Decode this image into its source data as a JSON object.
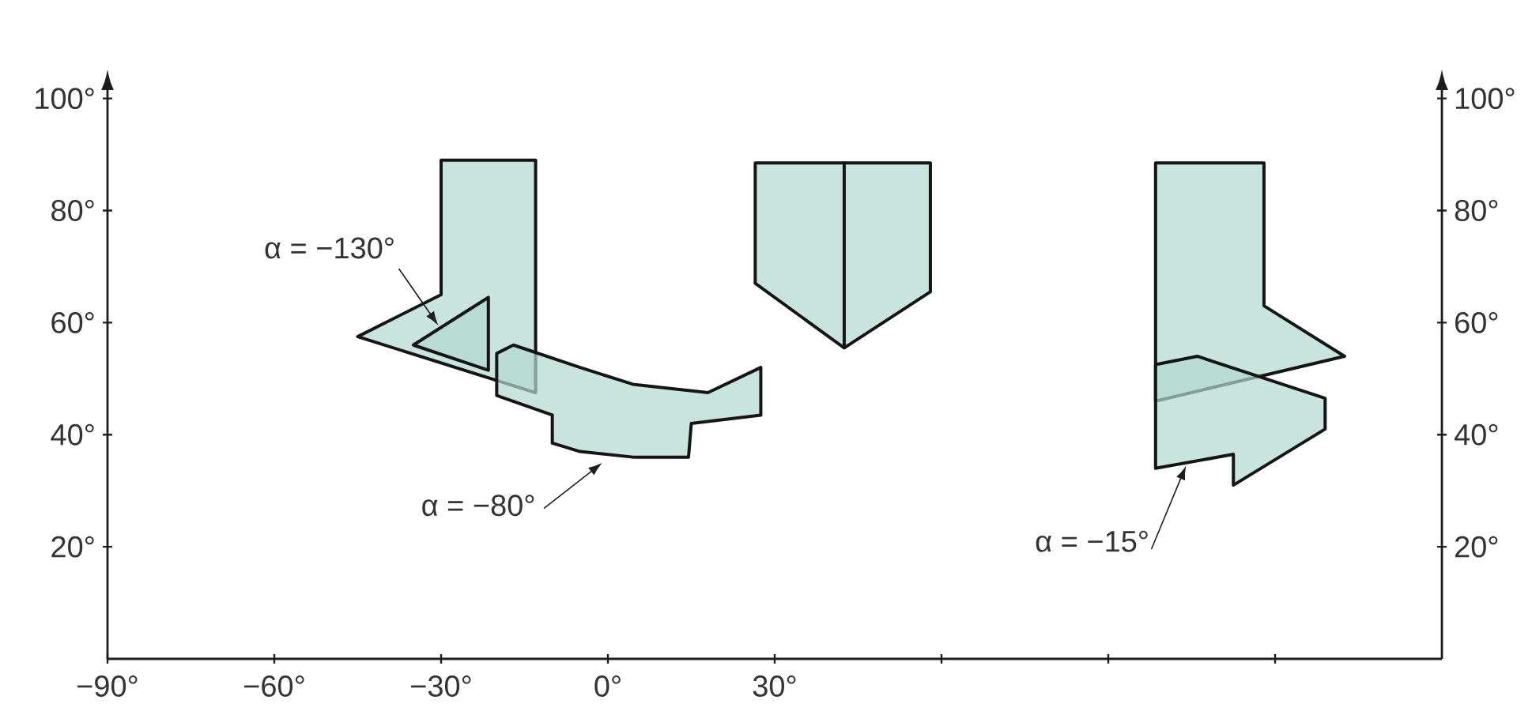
{
  "chart_data": {
    "type": "area",
    "xlim": [
      -90,
      150
    ],
    "ylim": [
      0,
      101.5
    ],
    "xticks": [
      {
        "value": -90,
        "label": "−90°"
      },
      {
        "value": -60,
        "label": "−60°"
      },
      {
        "value": -30,
        "label": "−30°"
      },
      {
        "value": 0,
        "label": "0°"
      },
      {
        "value": 30,
        "label": "30°"
      },
      {
        "value": 60,
        "label": null
      },
      {
        "value": 90,
        "label": null
      },
      {
        "value": 120,
        "label": null
      }
    ],
    "yticks": [
      {
        "value": 20,
        "label": "20°"
      },
      {
        "value": 40,
        "label": "40°"
      },
      {
        "value": 60,
        "label": "60°"
      },
      {
        "value": 80,
        "label": "80°"
      },
      {
        "value": 100,
        "label": "100°"
      }
    ],
    "y2lim": [
      0,
      101.5
    ],
    "y2ticks": [
      {
        "value": 20,
        "label": "20°"
      },
      {
        "value": 40,
        "label": "40°"
      },
      {
        "value": 60,
        "label": "60°"
      },
      {
        "value": 80,
        "label": "80°"
      },
      {
        "value": 100,
        "label": "100°"
      }
    ],
    "series": [
      {
        "color": "#c8e4dc",
        "x": [
          -30,
          -13,
          -13,
          -45,
          -30
        ],
        "values": [
          89,
          89,
          47.5,
          57.5,
          65
        ]
      },
      {
        "color": "#c8e4dc",
        "x": [
          -35,
          -21.5,
          -21.5
        ],
        "values": [
          56,
          64.5,
          51.5
        ]
      },
      {
        "color": "#c8e4dc",
        "x": [
          -20,
          -17,
          -5,
          4.5,
          18,
          27.5,
          27.5,
          15,
          14.5,
          4.5,
          -5,
          -10,
          -10,
          -20
        ],
        "values": [
          54.5,
          56,
          52,
          49,
          47.5,
          52,
          43.5,
          42,
          36,
          36,
          37,
          38.5,
          43.5,
          47
        ]
      },
      {
        "color": "#c8e4dc",
        "x": [
          26.5,
          58,
          58,
          42.5,
          26.5
        ],
        "values": [
          88.5,
          88.5,
          65.5,
          55.5,
          67
        ]
      },
      {
        "type": "line",
        "color": "#151515",
        "x": [
          42.5,
          42.5
        ],
        "values": [
          88.5,
          55.5
        ]
      },
      {
        "color": "#c8e4dc",
        "x": [
          98.5,
          118,
          118,
          132.5,
          98.5
        ],
        "values": [
          88.5,
          88.5,
          63,
          54,
          46
        ]
      },
      {
        "color": "#c8e4dc",
        "x": [
          98.5,
          106,
          129,
          129,
          112.5,
          112.5,
          98.5
        ],
        "values": [
          52.5,
          54,
          46.5,
          41,
          31,
          36.5,
          34
        ]
      }
    ],
    "annotations": [
      {
        "text": "α = −130°",
        "x": -30.5,
        "y": 59.5
      },
      {
        "text": "α = −80°",
        "x": -1,
        "y": 35
      },
      {
        "text": "α = −15°",
        "x": 104,
        "y": 34.5
      }
    ]
  }
}
